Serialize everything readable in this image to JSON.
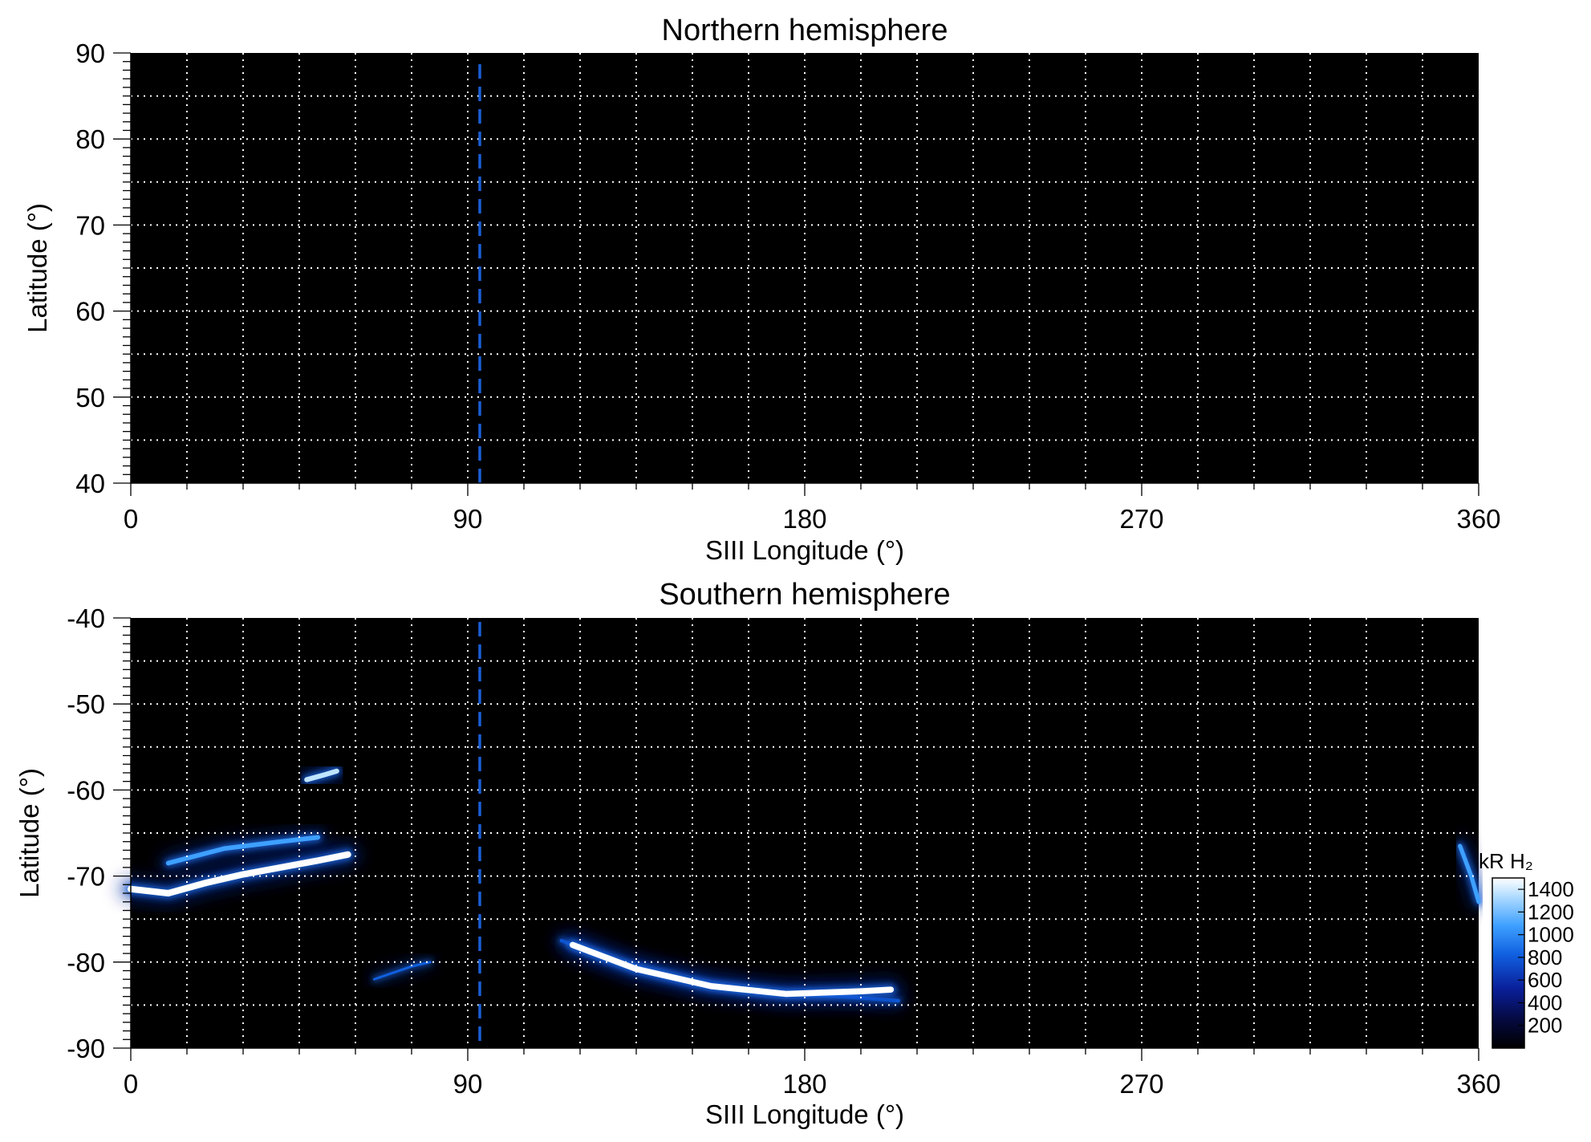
{
  "chart_data": [
    {
      "type": "heatmap",
      "title": "Northern hemisphere",
      "xlabel": "SIII Longitude (°)",
      "ylabel": "Latitude (°)",
      "xlim": [
        0,
        360
      ],
      "ylim": [
        40,
        90
      ],
      "xticks": [
        "0",
        "90",
        "180",
        "270",
        "360"
      ],
      "yticks": [
        "90",
        "80",
        "70",
        "60",
        "50",
        "40"
      ],
      "grid": true,
      "grid_x_step": 15,
      "grid_y_step": 5,
      "reference_line": {
        "x": 93,
        "color": "#1a5fd6",
        "style": "dashed"
      },
      "background_color": "#000000",
      "emission_features": []
    },
    {
      "type": "heatmap",
      "title": "Southern hemisphere",
      "xlabel": "SIII Longitude (°)",
      "ylabel": "Latitude (°)",
      "xlim": [
        0,
        360
      ],
      "ylim": [
        -90,
        -40
      ],
      "xticks": [
        "0",
        "90",
        "180",
        "270",
        "360"
      ],
      "yticks": [
        "-40",
        "-50",
        "-60",
        "-70",
        "-80",
        "-90"
      ],
      "grid": true,
      "grid_x_step": 15,
      "grid_y_step": 5,
      "reference_line": {
        "x": 93,
        "color": "#1a5fd6",
        "style": "dashed"
      },
      "background_color": "#000000",
      "emission_features": [
        {
          "name": "main-oval-west",
          "intensity": 1400,
          "path": [
            [
              0,
              -71.5
            ],
            [
              10,
              -72.0
            ],
            [
              20,
              -70.8
            ],
            [
              30,
              -69.8
            ],
            [
              40,
              -69.0
            ],
            [
              50,
              -68.2
            ],
            [
              58,
              -67.5
            ]
          ]
        },
        {
          "name": "main-oval-west-upper",
          "intensity": 900,
          "path": [
            [
              10,
              -68.5
            ],
            [
              25,
              -66.8
            ],
            [
              40,
              -66.0
            ],
            [
              50,
              -65.5
            ]
          ]
        },
        {
          "name": "high-lat-spot",
          "intensity": 1000,
          "path": [
            [
              47,
              -58.8
            ],
            [
              52,
              -58.2
            ],
            [
              55,
              -57.8
            ]
          ]
        },
        {
          "name": "main-oval-arc-outer",
          "intensity": 600,
          "path": [
            [
              115,
              -77.5
            ],
            [
              130,
              -80.0
            ],
            [
              150,
              -82.3
            ],
            [
              170,
              -83.6
            ],
            [
              190,
              -84.0
            ],
            [
              205,
              -84.5
            ]
          ]
        },
        {
          "name": "main-oval-arc",
          "intensity": 1300,
          "path": [
            [
              118,
              -78.0
            ],
            [
              135,
              -80.8
            ],
            [
              155,
              -82.8
            ],
            [
              175,
              -83.7
            ],
            [
              195,
              -83.4
            ],
            [
              203,
              -83.2
            ]
          ]
        },
        {
          "name": "diffuse-low",
          "intensity": 300,
          "path": [
            [
              65,
              -82.0
            ],
            [
              75,
              -80.5
            ],
            [
              80,
              -80.0
            ]
          ]
        },
        {
          "name": "east-edge-oval",
          "intensity": 800,
          "path": [
            [
              355,
              -66.5
            ],
            [
              358,
              -70.0
            ],
            [
              360,
              -73.0
            ]
          ]
        }
      ],
      "colorbar": {
        "label": "kR H₂",
        "ticks": [
          "1400",
          "1200",
          "1000",
          "800",
          "600",
          "400",
          "200"
        ],
        "range": [
          0,
          1500
        ],
        "colors": [
          "#000000",
          "#050a40",
          "#0a1f9a",
          "#1060e0",
          "#3ea0ff",
          "#a8d8ff",
          "#ffffff"
        ]
      }
    }
  ]
}
